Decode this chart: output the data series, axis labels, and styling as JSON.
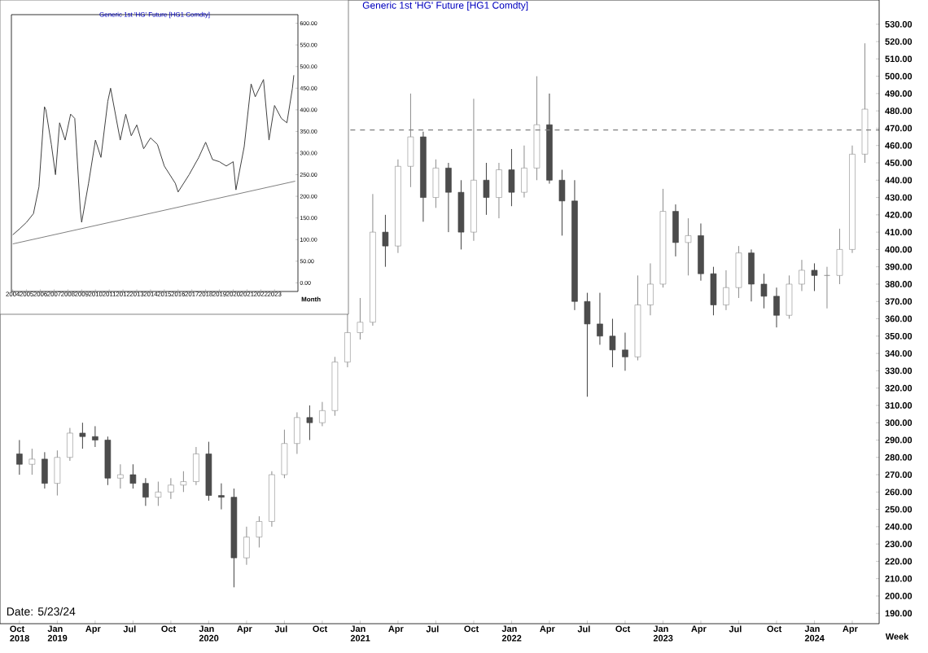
{
  "chart_data": [
    {
      "type": "candlestick",
      "title": "Generic 1st 'HG' Future [HG1 Comdty]",
      "xlabel": "Week",
      "x": [
        "2018-10",
        "2018-11",
        "2018-12",
        "2019-01",
        "2019-02",
        "2019-03",
        "2019-04",
        "2019-05",
        "2019-06",
        "2019-07",
        "2019-08",
        "2019-09",
        "2019-10",
        "2019-11",
        "2019-12",
        "2020-01",
        "2020-02",
        "2020-03",
        "2020-04",
        "2020-05",
        "2020-06",
        "2020-07",
        "2020-08",
        "2020-09",
        "2020-10",
        "2020-11",
        "2020-12",
        "2021-01",
        "2021-02",
        "2021-03",
        "2021-04",
        "2021-05",
        "2021-06",
        "2021-07",
        "2021-08",
        "2021-09",
        "2021-10",
        "2021-11",
        "2021-12",
        "2022-01",
        "2022-02",
        "2022-03",
        "2022-04",
        "2022-05",
        "2022-06",
        "2022-07",
        "2022-08",
        "2022-09",
        "2022-10",
        "2022-11",
        "2022-12",
        "2023-01",
        "2023-02",
        "2023-03",
        "2023-04",
        "2023-05",
        "2023-06",
        "2023-07",
        "2023-08",
        "2023-09",
        "2023-10",
        "2023-11",
        "2023-12",
        "2024-01",
        "2024-02",
        "2024-03",
        "2024-04",
        "2024-05"
      ],
      "ohlc": [
        [
          282,
          290,
          270,
          276
        ],
        [
          276,
          285,
          270,
          279
        ],
        [
          279,
          283,
          262,
          265
        ],
        [
          265,
          284,
          258,
          280
        ],
        [
          280,
          297,
          278,
          294
        ],
        [
          294,
          300,
          285,
          292
        ],
        [
          292,
          298,
          286,
          290
        ],
        [
          290,
          292,
          264,
          268
        ],
        [
          268,
          276,
          262,
          270
        ],
        [
          270,
          276,
          262,
          265
        ],
        [
          265,
          268,
          252,
          257
        ],
        [
          257,
          266,
          252,
          260
        ],
        [
          260,
          268,
          256,
          264
        ],
        [
          264,
          272,
          260,
          266
        ],
        [
          266,
          286,
          264,
          282
        ],
        [
          282,
          289,
          255,
          258
        ],
        [
          258,
          265,
          250,
          257
        ],
        [
          257,
          262,
          205,
          222
        ],
        [
          222,
          240,
          218,
          234
        ],
        [
          234,
          246,
          228,
          243
        ],
        [
          243,
          272,
          240,
          270
        ],
        [
          270,
          296,
          268,
          288
        ],
        [
          288,
          306,
          282,
          303
        ],
        [
          303,
          310,
          290,
          300
        ],
        [
          300,
          312,
          298,
          307
        ],
        [
          307,
          338,
          304,
          335
        ],
        [
          335,
          365,
          332,
          352
        ],
        [
          352,
          372,
          348,
          358
        ],
        [
          358,
          432,
          356,
          410
        ],
        [
          410,
          420,
          390,
          402
        ],
        [
          402,
          452,
          398,
          448
        ],
        [
          448,
          490,
          436,
          465
        ],
        [
          465,
          468,
          416,
          430
        ],
        [
          430,
          452,
          424,
          447
        ],
        [
          447,
          450,
          410,
          433
        ],
        [
          433,
          440,
          400,
          410
        ],
        [
          410,
          487,
          405,
          440
        ],
        [
          440,
          450,
          420,
          430
        ],
        [
          430,
          450,
          418,
          446
        ],
        [
          446,
          458,
          425,
          433
        ],
        [
          433,
          460,
          430,
          447
        ],
        [
          447,
          500,
          440,
          472
        ],
        [
          472,
          490,
          438,
          440
        ],
        [
          440,
          446,
          408,
          428
        ],
        [
          428,
          440,
          365,
          370
        ],
        [
          370,
          375,
          315,
          357
        ],
        [
          357,
          375,
          345,
          350
        ],
        [
          350,
          360,
          332,
          342
        ],
        [
          342,
          352,
          330,
          338
        ],
        [
          338,
          385,
          336,
          368
        ],
        [
          368,
          392,
          362,
          380
        ],
        [
          380,
          435,
          378,
          422
        ],
        [
          422,
          426,
          396,
          404
        ],
        [
          404,
          418,
          385,
          408
        ],
        [
          408,
          415,
          382,
          386
        ],
        [
          386,
          390,
          362,
          368
        ],
        [
          368,
          388,
          365,
          378
        ],
        [
          378,
          402,
          372,
          398
        ],
        [
          398,
          400,
          370,
          380
        ],
        [
          380,
          386,
          366,
          373
        ],
        [
          373,
          378,
          355,
          362
        ],
        [
          362,
          385,
          360,
          380
        ],
        [
          380,
          394,
          376,
          388
        ],
        [
          388,
          392,
          376,
          385
        ],
        [
          385,
          390,
          366,
          385
        ],
        [
          385,
          412,
          380,
          400
        ],
        [
          400,
          460,
          398,
          455
        ],
        [
          455,
          519,
          450,
          481
        ]
      ],
      "xlim": [
        "2018-08-15",
        "2024-06-05"
      ],
      "ylim": [
        184,
        544
      ],
      "xticks": [
        {
          "value": "2018-10",
          "label": "Oct 2018"
        },
        {
          "value": "2019-01",
          "label": "Jan 2019"
        },
        {
          "value": "2019-04",
          "label": "Apr"
        },
        {
          "value": "2019-07",
          "label": "Jul"
        },
        {
          "value": "2019-10",
          "label": "Oct"
        },
        {
          "value": "2020-01",
          "label": "Jan 2020"
        },
        {
          "value": "2020-04",
          "label": "Apr"
        },
        {
          "value": "2020-07",
          "label": "Jul"
        },
        {
          "value": "2020-10",
          "label": "Oct"
        },
        {
          "value": "2021-01",
          "label": "Jan 2021"
        },
        {
          "value": "2021-04",
          "label": "Apr"
        },
        {
          "value": "2021-07",
          "label": "Jul"
        },
        {
          "value": "2021-10",
          "label": "Oct"
        },
        {
          "value": "2022-01",
          "label": "Jan 2022"
        },
        {
          "value": "2022-04",
          "label": "Apr"
        },
        {
          "value": "2022-07",
          "label": "Jul"
        },
        {
          "value": "2022-10",
          "label": "Oct"
        },
        {
          "value": "2023-01",
          "label": "Jan 2023"
        },
        {
          "value": "2023-04",
          "label": "Apr"
        },
        {
          "value": "2023-07",
          "label": "Jul"
        },
        {
          "value": "2023-10",
          "label": "Oct"
        },
        {
          "value": "2024-01",
          "label": "Jan 2024"
        },
        {
          "value": "2024-04",
          "label": "Apr"
        }
      ],
      "yticks": [
        {
          "value": 190,
          "label": "190.00"
        },
        {
          "value": 200,
          "label": "200.00"
        },
        {
          "value": 210,
          "label": "210.00"
        },
        {
          "value": 220,
          "label": "220.00"
        },
        {
          "value": 230,
          "label": "230.00"
        },
        {
          "value": 240,
          "label": "240.00"
        },
        {
          "value": 250,
          "label": "250.00"
        },
        {
          "value": 260,
          "label": "260.00"
        },
        {
          "value": 270,
          "label": "270.00"
        },
        {
          "value": 280,
          "label": "280.00"
        },
        {
          "value": 290,
          "label": "290.00"
        },
        {
          "value": 300,
          "label": "300.00"
        },
        {
          "value": 310,
          "label": "310.00"
        },
        {
          "value": 320,
          "label": "320.00"
        },
        {
          "value": 330,
          "label": "330.00"
        },
        {
          "value": 340,
          "label": "340.00"
        },
        {
          "value": 350,
          "label": "350.00"
        },
        {
          "value": 360,
          "label": "360.00"
        },
        {
          "value": 370,
          "label": "370.00"
        },
        {
          "value": 380,
          "label": "380.00"
        },
        {
          "value": 390,
          "label": "390.00"
        },
        {
          "value": 400,
          "label": "400.00"
        },
        {
          "value": 410,
          "label": "410.00"
        },
        {
          "value": 420,
          "label": "420.00"
        },
        {
          "value": 430,
          "label": "430.00"
        },
        {
          "value": 440,
          "label": "440.00"
        },
        {
          "value": 450,
          "label": "450.00"
        },
        {
          "value": 460,
          "label": "460.00"
        },
        {
          "value": 470,
          "label": "470.00"
        },
        {
          "value": 480,
          "label": "480.00"
        },
        {
          "value": 490,
          "label": "490.00"
        },
        {
          "value": 500,
          "label": "500.00"
        },
        {
          "value": 510,
          "label": "510.00"
        },
        {
          "value": 520,
          "label": "520.00"
        },
        {
          "value": 530,
          "label": "530.00"
        }
      ],
      "ref_lines": [
        {
          "axis": "y",
          "value": 469,
          "color": "#808080",
          "line_style": "dashed"
        }
      ],
      "annotations": [
        "Date:   5/23/24"
      ]
    },
    {
      "type": "line",
      "title": "Generic 1st 'HG' Future [HG1 Comdty]",
      "xlabel": "Month",
      "series": [
        {
          "color": "#404040",
          "x": [
            2004.0,
            2004.5,
            2005.0,
            2005.5,
            2005.9,
            2006.3,
            2006.4,
            2006.8,
            2007.1,
            2007.4,
            2007.8,
            2008.2,
            2008.5,
            2008.9,
            2009.0,
            2009.5,
            2010.0,
            2010.4,
            2010.9,
            2011.1,
            2011.8,
            2012.2,
            2012.6,
            2013.0,
            2013.5,
            2014.0,
            2014.5,
            2015.0,
            2015.8,
            2016.0,
            2016.8,
            2017.5,
            2018.0,
            2018.5,
            2019.0,
            2019.5,
            2020.0,
            2020.2,
            2020.8,
            2021.3,
            2021.6,
            2022.2,
            2022.6,
            2023.0,
            2023.5,
            2023.9,
            2024.3,
            2024.4
          ],
          "values": [
            111,
            125,
            140,
            160,
            222,
            407,
            400,
            320,
            250,
            370,
            330,
            390,
            380,
            170,
            140,
            230,
            330,
            290,
            420,
            450,
            330,
            390,
            340,
            365,
            310,
            335,
            320,
            270,
            230,
            210,
            250,
            290,
            325,
            285,
            280,
            270,
            280,
            215,
            315,
            460,
            430,
            470,
            330,
            410,
            380,
            370,
            450,
            480
          ]
        },
        {
          "color": "#808080",
          "x": [
            2004.0,
            2024.5
          ],
          "values": [
            90,
            235
          ]
        }
      ],
      "xlim": [
        2003.9,
        2024.7
      ],
      "ylim": [
        -20,
        620
      ],
      "xticks": [
        2004,
        2005,
        2006,
        2007,
        2008,
        2009,
        2010,
        2011,
        2012,
        2013,
        2014,
        2015,
        2016,
        2017,
        2018,
        2019,
        2020,
        2021,
        2022,
        2023
      ],
      "yticks": [
        {
          "value": 0,
          "label": "0.00"
        },
        {
          "value": 50,
          "label": "50.00"
        },
        {
          "value": 100,
          "label": "100.00"
        },
        {
          "value": 150,
          "label": "150.00"
        },
        {
          "value": 200,
          "label": "200.00"
        },
        {
          "value": 250,
          "label": "250.00"
        },
        {
          "value": 300,
          "label": "300.00"
        },
        {
          "value": 350,
          "label": "350.00"
        },
        {
          "value": 400,
          "label": "400.00"
        },
        {
          "value": 450,
          "label": "450.00"
        },
        {
          "value": 500,
          "label": "500.00"
        },
        {
          "value": 550,
          "label": "550.00"
        },
        {
          "value": 600,
          "label": "600.00"
        }
      ]
    }
  ]
}
